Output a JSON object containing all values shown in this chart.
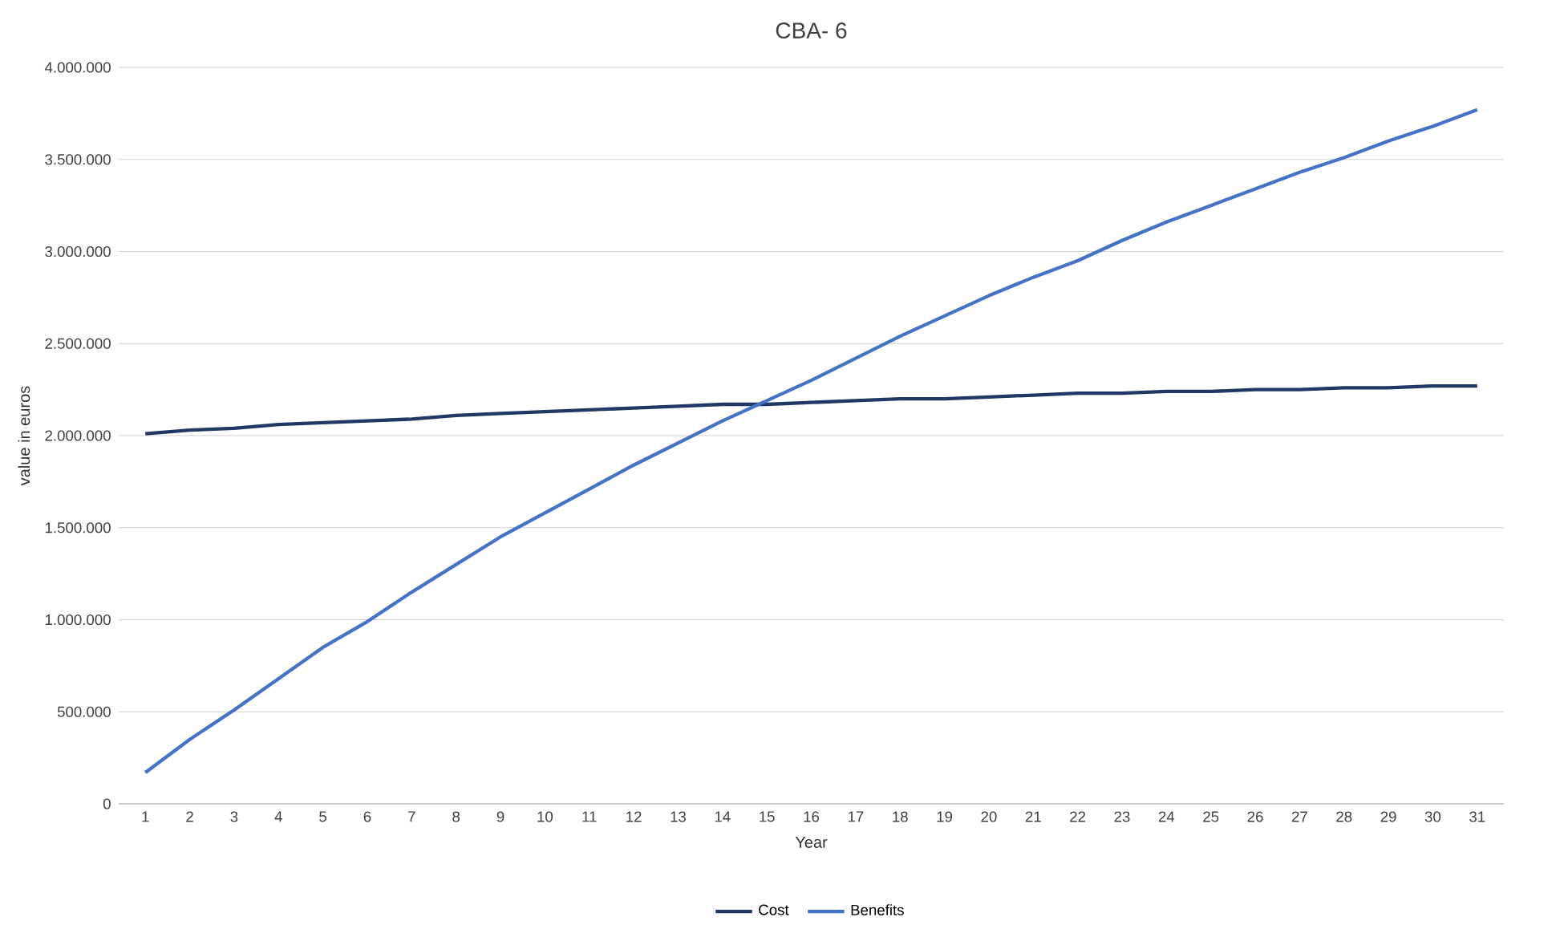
{
  "chart_data": {
    "type": "line",
    "title": "CBA- 6",
    "xlabel": "Year",
    "ylabel": "value in euros",
    "categories": [
      "1",
      "2",
      "3",
      "4",
      "5",
      "6",
      "7",
      "8",
      "9",
      "10",
      "11",
      "12",
      "13",
      "14",
      "15",
      "16",
      "17",
      "18",
      "19",
      "20",
      "21",
      "22",
      "23",
      "24",
      "25",
      "26",
      "27",
      "28",
      "29",
      "30",
      "31"
    ],
    "series": [
      {
        "name": "Cost",
        "color": "#203864",
        "values": [
          2010000,
          2030000,
          2040000,
          2060000,
          2070000,
          2080000,
          2090000,
          2110000,
          2120000,
          2130000,
          2140000,
          2150000,
          2160000,
          2170000,
          2170000,
          2180000,
          2190000,
          2200000,
          2200000,
          2210000,
          2220000,
          2230000,
          2230000,
          2240000,
          2240000,
          2250000,
          2250000,
          2260000,
          2260000,
          2270000,
          2270000
        ]
      },
      {
        "name": "Benefits",
        "color": "#4472c4",
        "values": [
          170000,
          350000,
          510000,
          680000,
          850000,
          990000,
          1150000,
          1300000,
          1450000,
          1580000,
          1710000,
          1840000,
          1960000,
          2080000,
          2190000,
          2300000,
          2420000,
          2540000,
          2650000,
          2760000,
          2860000,
          2950000,
          3060000,
          3160000,
          3250000,
          3340000,
          3430000,
          3510000,
          3600000,
          3680000,
          3770000
        ]
      }
    ],
    "ylim": [
      0,
      4000000
    ],
    "yticks": [
      0,
      {
        "value": 500000,
        "label": "500.000"
      },
      {
        "value": 1000000,
        "label": "1.000.000"
      },
      {
        "value": 1500000,
        "label": "1.500.000"
      },
      {
        "value": 2000000,
        "label": "2.000.000"
      },
      {
        "value": 2500000,
        "label": "2.500.000"
      },
      {
        "value": 3000000,
        "label": "3.000.000"
      },
      {
        "value": 3500000,
        "label": "3.500.000"
      },
      {
        "value": 4000000,
        "label": "4.000.000"
      }
    ],
    "grid": "y",
    "legend": "bottom",
    "marker": "none",
    "line_style": "solid"
  }
}
